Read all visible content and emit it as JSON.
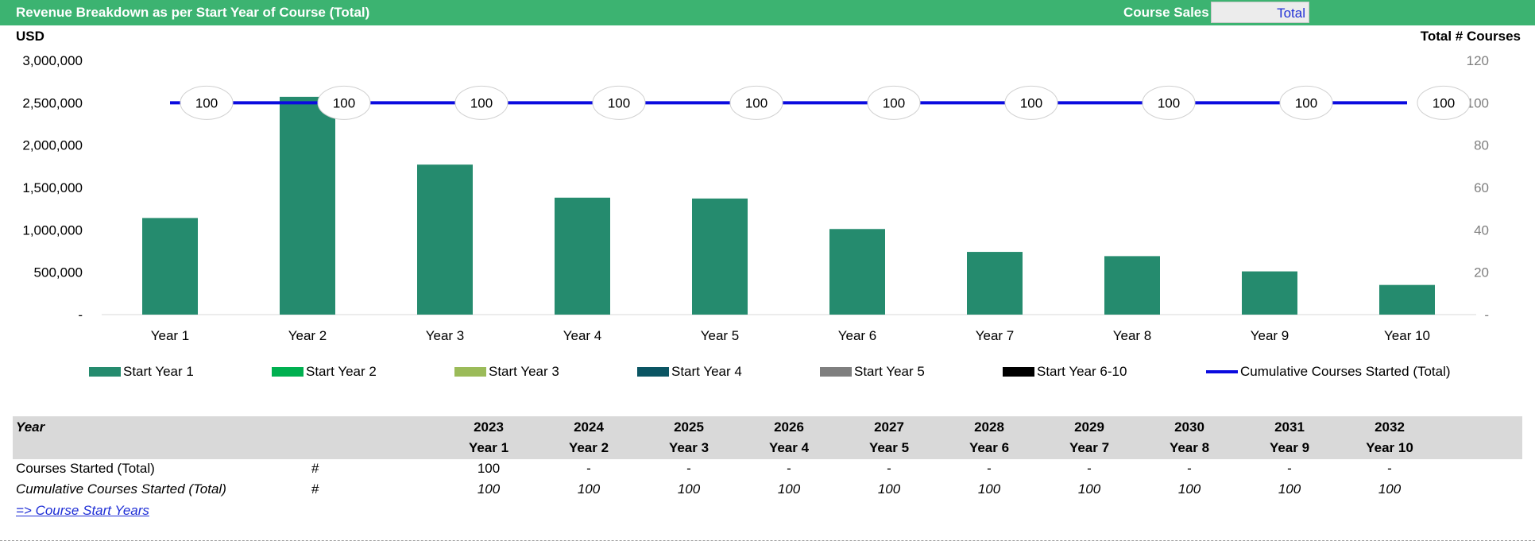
{
  "header": {
    "title": "Revenue Breakdown as per Start Year of Course (Total)",
    "select_label": "Course Sales",
    "select_value": "Total"
  },
  "colors": {
    "header_bg": "#3cb371",
    "bar": "#258b6e",
    "line": "#0b0bdf",
    "start_year_1": "#258b6e",
    "start_year_2": "#00b050",
    "start_year_3": "#9bbb59",
    "start_year_4": "#0b5563",
    "start_year_5": "#7f7f7f",
    "start_year_6_10": "#000000"
  },
  "chart_data": {
    "type": "bar",
    "categories": [
      "Year 1",
      "Year 2",
      "Year 3",
      "Year 4",
      "Year 5",
      "Year 6",
      "Year 7",
      "Year 8",
      "Year 9",
      "Year 10"
    ],
    "ylabel": "USD",
    "y2label": "Total # Courses",
    "ylim": [
      0,
      3000000
    ],
    "y2lim": [
      0,
      120
    ],
    "y_ticks": [
      "-",
      "500,000",
      "1,000,000",
      "1,500,000",
      "2,000,000",
      "2,500,000",
      "3,000,000"
    ],
    "y2_ticks": [
      "-",
      "20",
      "40",
      "60",
      "80",
      "100",
      "120"
    ],
    "series": [
      {
        "name": "Start Year 1",
        "type": "bar",
        "axis": "left",
        "values": [
          1140000,
          2570000,
          1770000,
          1380000,
          1370000,
          1010000,
          740000,
          690000,
          510000,
          350000
        ]
      },
      {
        "name": "Start Year 2",
        "type": "bar",
        "axis": "left",
        "values": [
          0,
          0,
          0,
          0,
          0,
          0,
          0,
          0,
          0,
          0
        ]
      },
      {
        "name": "Start Year 3",
        "type": "bar",
        "axis": "left",
        "values": [
          0,
          0,
          0,
          0,
          0,
          0,
          0,
          0,
          0,
          0
        ]
      },
      {
        "name": "Start Year 4",
        "type": "bar",
        "axis": "left",
        "values": [
          0,
          0,
          0,
          0,
          0,
          0,
          0,
          0,
          0,
          0
        ]
      },
      {
        "name": "Start Year 5",
        "type": "bar",
        "axis": "left",
        "values": [
          0,
          0,
          0,
          0,
          0,
          0,
          0,
          0,
          0,
          0
        ]
      },
      {
        "name": "Start Year 6-10",
        "type": "bar",
        "axis": "left",
        "values": [
          0,
          0,
          0,
          0,
          0,
          0,
          0,
          0,
          0,
          0
        ]
      },
      {
        "name": "Cumulative Courses Started (Total)",
        "type": "line",
        "axis": "right",
        "values": [
          100,
          100,
          100,
          100,
          100,
          100,
          100,
          100,
          100,
          100
        ],
        "labels": [
          "100",
          "100",
          "100",
          "100",
          "100",
          "100",
          "100",
          "100",
          "100",
          "100"
        ]
      }
    ],
    "legend_position": "bottom",
    "grid": false
  },
  "table": {
    "title": "Year",
    "calendar_years": [
      "2023",
      "2024",
      "2025",
      "2026",
      "2027",
      "2028",
      "2029",
      "2030",
      "2031",
      "2032"
    ],
    "year_labels": [
      "Year 1",
      "Year 2",
      "Year 3",
      "Year 4",
      "Year 5",
      "Year 6",
      "Year 7",
      "Year 8",
      "Year 9",
      "Year 10"
    ],
    "rows": [
      {
        "label": "Courses Started (Total)",
        "unit": "#",
        "values": [
          "100",
          "-",
          "-",
          "-",
          "-",
          "-",
          "-",
          "-",
          "-",
          "-"
        ]
      },
      {
        "label": "Cumulative Courses Started (Total)",
        "unit": "#",
        "values": [
          "100",
          "100",
          "100",
          "100",
          "100",
          "100",
          "100",
          "100",
          "100",
          "100"
        ]
      }
    ]
  },
  "link": {
    "label": "=> Course Start Years"
  }
}
